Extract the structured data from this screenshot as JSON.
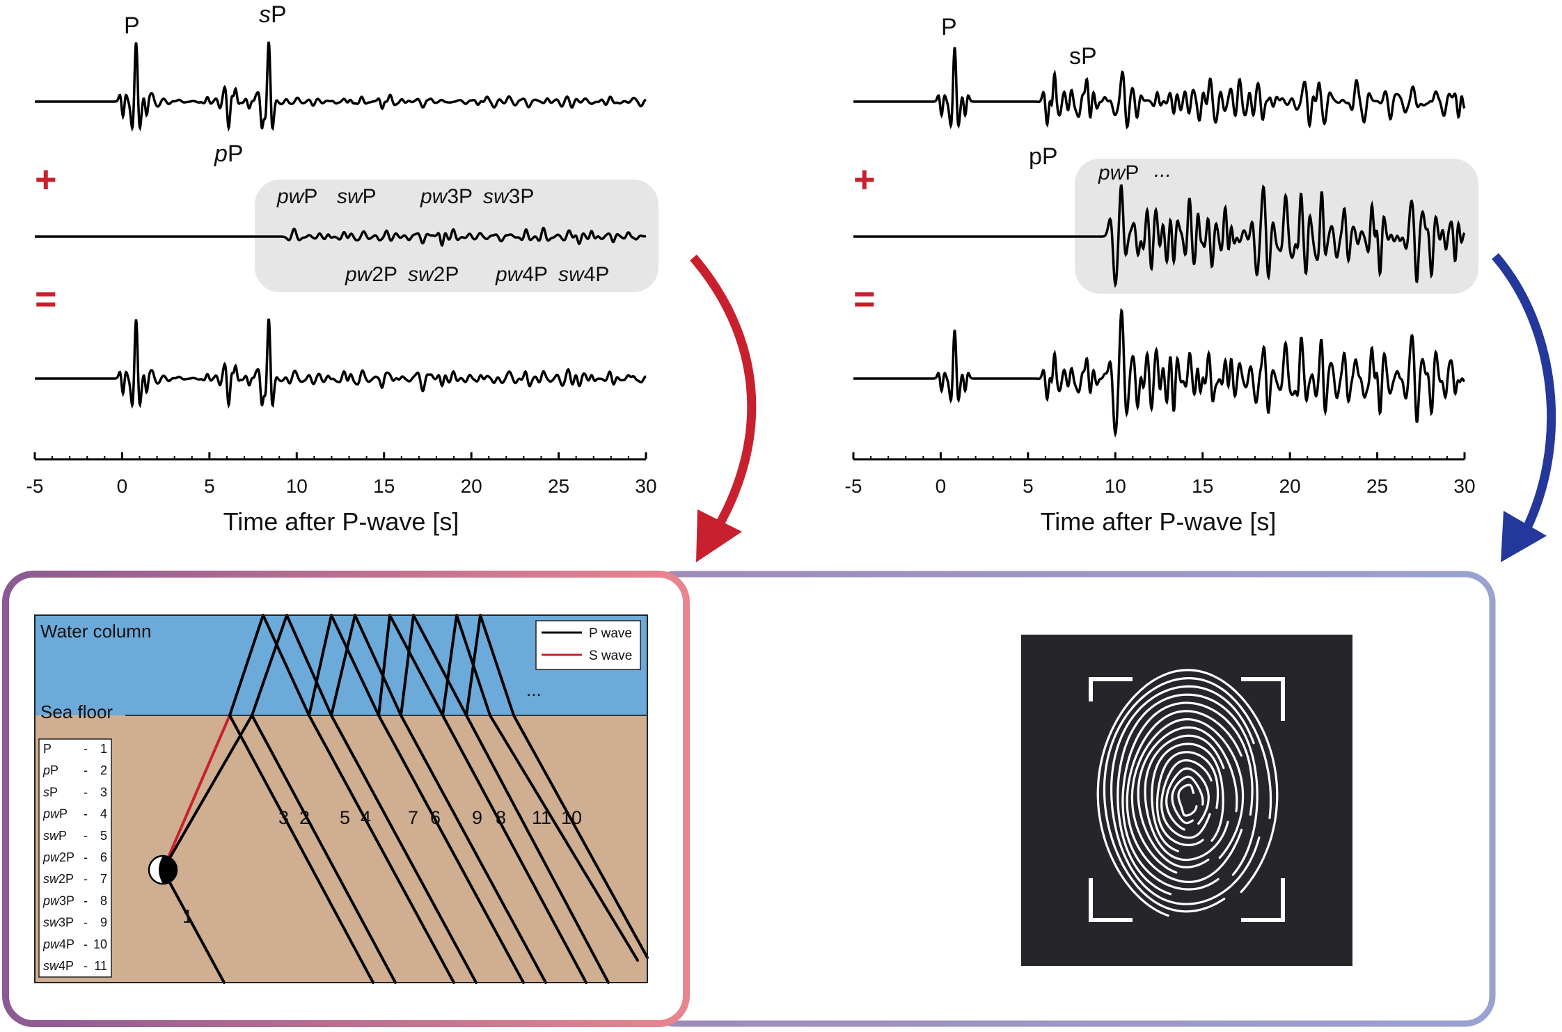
{
  "panels": [
    {
      "id": "left",
      "stack": [
        {
          "role": "original",
          "peak_labels": [
            "P",
            "pP",
            "sP"
          ]
        },
        {
          "role": "reverberations",
          "operator": "+",
          "phase_labels_top": [
            "pwP",
            "swP",
            "pw3P",
            "sw3P"
          ],
          "phase_labels_bottom": [
            "pw2P",
            "sw2P",
            "pw4P",
            "sw4P"
          ]
        },
        {
          "role": "sum",
          "operator": "="
        }
      ],
      "axis": {
        "ticks": [
          "-5",
          "0",
          "5",
          "10",
          "15",
          "20",
          "25",
          "30"
        ],
        "title": "Time after P-wave [s]"
      }
    },
    {
      "id": "right",
      "stack": [
        {
          "role": "original",
          "peak_labels": [
            "P",
            "pP",
            "sP"
          ]
        },
        {
          "role": "reverberations",
          "operator": "+",
          "phase_labels_top": [
            "pwP",
            "..."
          ]
        },
        {
          "role": "sum",
          "operator": "="
        }
      ],
      "axis": {
        "ticks": [
          "-5",
          "0",
          "5",
          "10",
          "15",
          "20",
          "25",
          "30"
        ],
        "title": "Time after P-wave [s]"
      }
    }
  ],
  "ray_diagram": {
    "layer_labels": {
      "water": "Water column",
      "seafloor": "Sea floor"
    },
    "legend": [
      {
        "label": "P wave",
        "color": "#000000"
      },
      {
        "label": "S wave",
        "color": "#c8202e"
      }
    ],
    "ellipsis": "...",
    "phase_table": [
      {
        "name": "P",
        "sep": "-",
        "num": "1"
      },
      {
        "name": "pP",
        "sep": "-",
        "num": "2"
      },
      {
        "name": "sP",
        "sep": "-",
        "num": "3"
      },
      {
        "name": "pwP",
        "sep": "-",
        "num": "4"
      },
      {
        "name": "swP",
        "sep": "-",
        "num": "5"
      },
      {
        "name": "pw2P",
        "sep": "-",
        "num": "6"
      },
      {
        "name": "sw2P",
        "sep": "-",
        "num": "7"
      },
      {
        "name": "pw3P",
        "sep": "-",
        "num": "8"
      },
      {
        "name": "sw3P",
        "sep": "-",
        "num": "9"
      },
      {
        "name": "pw4P",
        "sep": "-",
        "num": "10"
      },
      {
        "name": "sw4P",
        "sep": "-",
        "num": "11"
      }
    ],
    "ray_numbers": [
      "1",
      "3",
      "2",
      "5",
      "4",
      "7",
      "6",
      "9",
      "8",
      "11",
      "10"
    ]
  },
  "colors": {
    "water": "#6baad9",
    "sediment": "#cfae92",
    "operator": "#c8202e",
    "arrow_left": "#c8202e",
    "arrow_right": "#24379a",
    "box_left_start": "#8a5b92",
    "box_left_end": "#e8858f",
    "box_right": "#99a2d0",
    "fingerprint_bg": "#26262a"
  },
  "icons": {
    "fingerprint": "fingerprint-scan-icon",
    "focal_mechanism": "beachball-icon"
  }
}
